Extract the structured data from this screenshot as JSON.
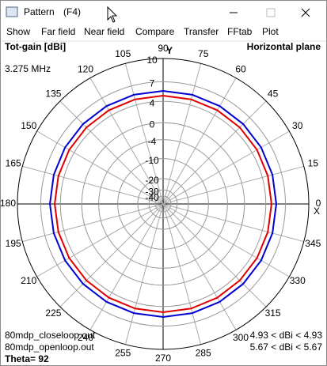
{
  "window": {
    "title": "Pattern",
    "shortcut": "(F4)"
  },
  "menu": [
    "Show",
    "Far field",
    "Near field",
    "Compare",
    "Transfer",
    "FFtab",
    "Plot"
  ],
  "chart_data": {
    "type": "polar",
    "y_label": "Tot-gain [dBi]",
    "title": "Horizontal plane",
    "subtitle": "3.275 MHz",
    "axis_y_name": "Y",
    "axis_x_name": "X",
    "radial_scale": "arrl-log",
    "rlim": [
      -40,
      10
    ],
    "rticks": [
      10,
      7,
      4,
      0,
      -4,
      -10,
      -20,
      -30,
      -40
    ],
    "xticks": [
      0,
      15,
      30,
      45,
      60,
      75,
      90,
      105,
      120,
      135,
      150,
      165,
      180,
      195,
      210,
      225,
      240,
      255,
      270,
      285,
      300,
      315,
      330,
      345
    ],
    "grid": true,
    "x": [
      0,
      15,
      30,
      45,
      60,
      75,
      90,
      105,
      120,
      135,
      150,
      165,
      180,
      195,
      210,
      225,
      240,
      255,
      270,
      285,
      300,
      315,
      330,
      345
    ],
    "series": [
      {
        "name": "80mdp_closeloop.out",
        "color": "#e00000",
        "range_label": "4.93 < dBi < 4.93",
        "values": [
          4.93,
          4.93,
          4.93,
          4.93,
          4.93,
          4.93,
          4.93,
          4.93,
          4.93,
          4.93,
          4.93,
          4.93,
          4.93,
          4.93,
          4.93,
          4.93,
          4.93,
          4.93,
          4.93,
          4.93,
          4.93,
          4.93,
          4.93,
          4.93
        ]
      },
      {
        "name": "80mdp_openloop.out",
        "color": "#0000d0",
        "range_label": "5.67 < dBi < 5.67",
        "values": [
          5.67,
          5.67,
          5.67,
          5.67,
          5.67,
          5.67,
          5.67,
          5.67,
          5.67,
          5.67,
          5.67,
          5.67,
          5.67,
          5.67,
          5.67,
          5.67,
          5.67,
          5.67,
          5.67,
          5.67,
          5.67,
          5.67,
          5.67,
          5.67
        ]
      }
    ],
    "footer": "Theta= 92"
  }
}
